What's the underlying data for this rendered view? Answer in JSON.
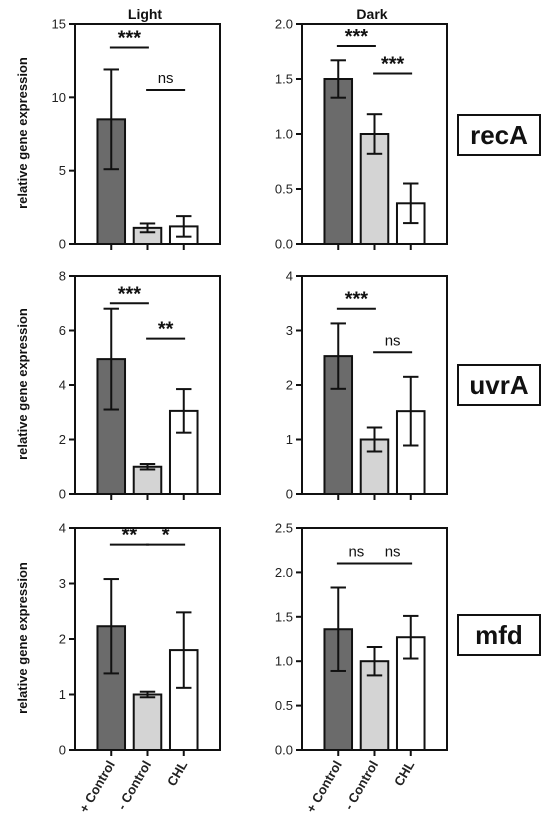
{
  "columns": [
    "Light",
    "Dark"
  ],
  "ylabel": "relative gene expression",
  "categories": [
    "+ Control",
    "- Control",
    "CHL"
  ],
  "genes": [
    "recA",
    "uvrA",
    "mfd"
  ],
  "colors": {
    "positive_control": "#6b6b6b",
    "negative_control": "#d4d4d4",
    "chl": "#ffffff",
    "stroke": "#111111"
  },
  "chart_data": [
    {
      "type": "bar",
      "gene": "recA",
      "column": "Light",
      "categories": [
        "+ Control",
        "- Control",
        "CHL"
      ],
      "values": [
        8.5,
        1.1,
        1.2
      ],
      "errors": [
        3.4,
        0.3,
        0.7
      ],
      "ylim": [
        0,
        15
      ],
      "yticks": [
        "0",
        "5",
        "10",
        "15"
      ],
      "significance": [
        {
          "from": 0,
          "to": 1,
          "label": "***",
          "level": 13.4
        },
        {
          "from": 1,
          "to": 2,
          "label": "ns",
          "level": 10.5
        }
      ]
    },
    {
      "type": "bar",
      "gene": "recA",
      "column": "Dark",
      "categories": [
        "+ Control",
        "- Control",
        "CHL"
      ],
      "values": [
        1.5,
        1.0,
        0.37
      ],
      "errors": [
        0.17,
        0.18,
        0.18
      ],
      "ylim": [
        0,
        2.0
      ],
      "yticks": [
        "0.0",
        "0.5",
        "1.0",
        "1.5",
        "2.0"
      ],
      "significance": [
        {
          "from": 0,
          "to": 1,
          "label": "***",
          "level": 1.8
        },
        {
          "from": 1,
          "to": 2,
          "label": "***",
          "level": 1.55
        }
      ]
    },
    {
      "type": "bar",
      "gene": "uvrA",
      "column": "Light",
      "categories": [
        "+ Control",
        "- Control",
        "CHL"
      ],
      "values": [
        4.95,
        1.0,
        3.05
      ],
      "errors": [
        1.85,
        0.1,
        0.8
      ],
      "ylim": [
        0,
        8
      ],
      "yticks": [
        "0",
        "2",
        "4",
        "6",
        "8"
      ],
      "significance": [
        {
          "from": 0,
          "to": 1,
          "label": "***",
          "level": 7.0
        },
        {
          "from": 1,
          "to": 2,
          "label": "**",
          "level": 5.7
        }
      ]
    },
    {
      "type": "bar",
      "gene": "uvrA",
      "column": "Dark",
      "categories": [
        "+ Control",
        "- Control",
        "CHL"
      ],
      "values": [
        2.53,
        1.0,
        1.52
      ],
      "errors": [
        0.6,
        0.22,
        0.63
      ],
      "ylim": [
        0,
        4
      ],
      "yticks": [
        "0",
        "1",
        "2",
        "3",
        "4"
      ],
      "significance": [
        {
          "from": 0,
          "to": 1,
          "label": "***",
          "level": 3.4
        },
        {
          "from": 1,
          "to": 2,
          "label": "ns",
          "level": 2.6
        }
      ]
    },
    {
      "type": "bar",
      "gene": "mfd",
      "column": "Light",
      "categories": [
        "+ Control",
        "- Control",
        "CHL"
      ],
      "values": [
        2.23,
        1.0,
        1.8
      ],
      "errors": [
        0.85,
        0.05,
        0.68
      ],
      "ylim": [
        0,
        4
      ],
      "yticks": [
        "0",
        "1",
        "2",
        "3",
        "4"
      ],
      "significance": [
        {
          "from": 0,
          "to": 1,
          "label": "**",
          "level": 3.7
        },
        {
          "from": 1,
          "to": 2,
          "label": "*",
          "level": 3.7
        }
      ]
    },
    {
      "type": "bar",
      "gene": "mfd",
      "column": "Dark",
      "categories": [
        "+ Control",
        "- Control",
        "CHL"
      ],
      "values": [
        1.36,
        1.0,
        1.27
      ],
      "errors": [
        0.47,
        0.16,
        0.24
      ],
      "ylim": [
        0,
        2.5
      ],
      "yticks": [
        "0.0",
        "0.5",
        "1.0",
        "1.5",
        "2.0",
        "2.5"
      ],
      "significance": [
        {
          "from": 0,
          "to": 1,
          "label": "ns",
          "level": 2.1
        },
        {
          "from": 1,
          "to": 2,
          "label": "ns",
          "level": 2.1
        }
      ]
    }
  ]
}
